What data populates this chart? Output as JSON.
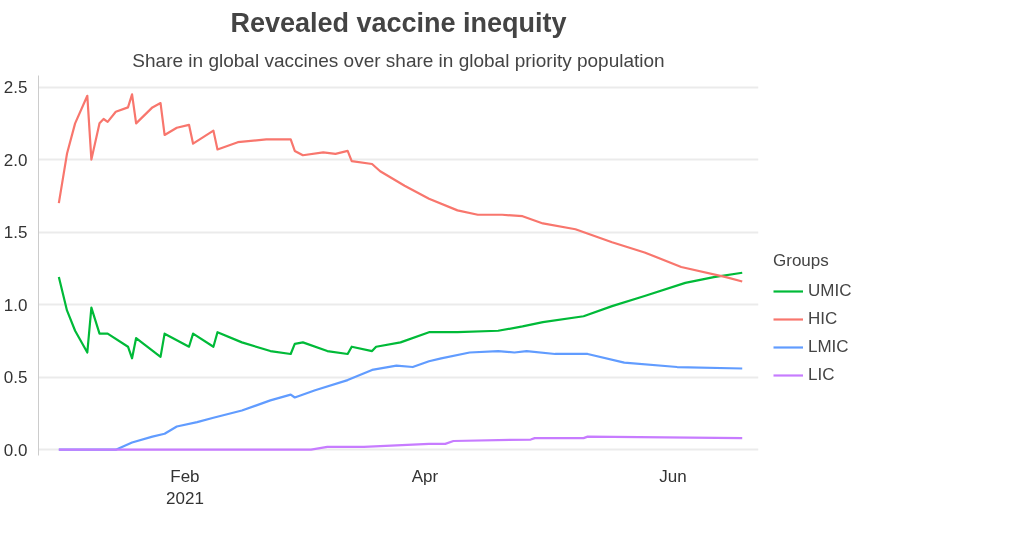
{
  "chart_data": {
    "type": "line",
    "title": "Revealed vaccine inequity",
    "subtitle": "Share in global vaccines over share in global priority population",
    "legend_title": "Groups",
    "legend": "right",
    "grid": "y",
    "line_style": "solid",
    "xlim": [
      "2020-12-27",
      "2021-06-22"
    ],
    "xticks": [
      {
        "value": "2021-02-01",
        "label": "Feb\n2021"
      },
      {
        "value": "2021-04-01",
        "label": "Apr"
      },
      {
        "value": "2021-06-01",
        "label": "Jun"
      }
    ],
    "ylim": [
      -0.04,
      2.58
    ],
    "yticks": [
      {
        "value": 0,
        "label": "0.0"
      },
      {
        "value": 0.5,
        "label": "0.5"
      },
      {
        "value": 1,
        "label": "1.0"
      },
      {
        "value": 1.5,
        "label": "1.5"
      },
      {
        "value": 2,
        "label": "2.0"
      },
      {
        "value": 2.5,
        "label": "2.5"
      }
    ],
    "series": [
      {
        "name": "UMIC",
        "color": "#00ba38",
        "x": [
          "2021-01-01",
          "2021-01-03",
          "2021-01-05",
          "2021-01-08",
          "2021-01-09",
          "2021-01-11",
          "2021-01-13",
          "2021-01-18",
          "2021-01-19",
          "2021-01-20",
          "2021-01-26",
          "2021-01-27",
          "2021-02-02",
          "2021-02-03",
          "2021-02-08",
          "2021-02-09",
          "2021-02-15",
          "2021-02-22",
          "2021-02-27",
          "2021-02-28",
          "2021-03-02",
          "2021-03-08",
          "2021-03-13",
          "2021-03-14",
          "2021-03-19",
          "2021-03-20",
          "2021-03-26",
          "2021-04-02",
          "2021-04-09",
          "2021-04-19",
          "2021-04-25",
          "2021-04-30",
          "2021-05-10",
          "2021-05-17",
          "2021-05-25",
          "2021-06-04",
          "2021-06-11",
          "2021-06-18"
        ],
        "values": [
          1.19,
          0.96,
          0.82,
          0.67,
          0.98,
          0.8,
          0.8,
          0.71,
          0.63,
          0.77,
          0.64,
          0.8,
          0.71,
          0.8,
          0.71,
          0.81,
          0.74,
          0.68,
          0.66,
          0.73,
          0.74,
          0.68,
          0.66,
          0.71,
          0.68,
          0.71,
          0.74,
          0.81,
          0.81,
          0.82,
          0.85,
          0.88,
          0.92,
          0.99,
          1.06,
          1.15,
          1.19,
          1.22
        ]
      },
      {
        "name": "HIC",
        "color": "#f8766d",
        "x": [
          "2021-01-01",
          "2021-01-03",
          "2021-01-05",
          "2021-01-08",
          "2021-01-09",
          "2021-01-11",
          "2021-01-12",
          "2021-01-13",
          "2021-01-15",
          "2021-01-18",
          "2021-01-19",
          "2021-01-20",
          "2021-01-24",
          "2021-01-26",
          "2021-01-27",
          "2021-01-30",
          "2021-02-02",
          "2021-02-03",
          "2021-02-08",
          "2021-02-09",
          "2021-02-14",
          "2021-02-21",
          "2021-02-27",
          "2021-02-28",
          "2021-03-02",
          "2021-03-07",
          "2021-03-10",
          "2021-03-13",
          "2021-03-14",
          "2021-03-19",
          "2021-03-21",
          "2021-03-27",
          "2021-04-02",
          "2021-04-09",
          "2021-04-14",
          "2021-04-20",
          "2021-04-25",
          "2021-04-30",
          "2021-05-08",
          "2021-05-17",
          "2021-05-25",
          "2021-06-03",
          "2021-06-14",
          "2021-06-18"
        ],
        "values": [
          1.7,
          2.04,
          2.25,
          2.44,
          2.0,
          2.25,
          2.28,
          2.26,
          2.33,
          2.36,
          2.45,
          2.25,
          2.36,
          2.39,
          2.17,
          2.22,
          2.24,
          2.11,
          2.2,
          2.07,
          2.12,
          2.14,
          2.14,
          2.06,
          2.03,
          2.05,
          2.04,
          2.06,
          1.99,
          1.97,
          1.92,
          1.82,
          1.73,
          1.65,
          1.62,
          1.62,
          1.61,
          1.56,
          1.52,
          1.43,
          1.36,
          1.26,
          1.19,
          1.16
        ]
      },
      {
        "name": "LMIC",
        "color": "#619cff",
        "x": [
          "2021-01-01",
          "2021-01-15",
          "2021-01-19",
          "2021-01-24",
          "2021-01-27",
          "2021-01-30",
          "2021-02-04",
          "2021-02-08",
          "2021-02-15",
          "2021-02-22",
          "2021-02-27",
          "2021-02-28",
          "2021-03-05",
          "2021-03-13",
          "2021-03-19",
          "2021-03-25",
          "2021-03-29",
          "2021-04-02",
          "2021-04-05",
          "2021-04-12",
          "2021-04-19",
          "2021-04-23",
          "2021-04-26",
          "2021-05-03",
          "2021-05-11",
          "2021-05-20",
          "2021-06-02",
          "2021-06-18"
        ],
        "values": [
          0,
          0,
          0.05,
          0.09,
          0.11,
          0.16,
          0.19,
          0.22,
          0.27,
          0.34,
          0.38,
          0.36,
          0.41,
          0.48,
          0.55,
          0.58,
          0.57,
          0.61,
          0.63,
          0.67,
          0.68,
          0.67,
          0.68,
          0.66,
          0.66,
          0.6,
          0.57,
          0.56
        ]
      },
      {
        "name": "LIC",
        "color": "#c77cff",
        "x": [
          "2021-01-01",
          "2021-03-04",
          "2021-03-08",
          "2021-03-17",
          "2021-04-02",
          "2021-04-06",
          "2021-04-08",
          "2021-04-27",
          "2021-04-28",
          "2021-05-10",
          "2021-05-11",
          "2021-06-18"
        ],
        "values": [
          0,
          0,
          0.02,
          0.02,
          0.04,
          0.04,
          0.06,
          0.07,
          0.08,
          0.08,
          0.09,
          0.08
        ]
      }
    ]
  }
}
